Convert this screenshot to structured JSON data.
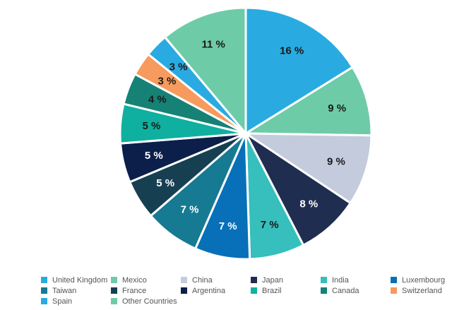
{
  "chart_data": {
    "type": "pie",
    "title": "",
    "slices": [
      {
        "name": "United Kingdom",
        "value": 16,
        "label": "16 %",
        "color": "#29abe2",
        "label_color": "#1a1a1a"
      },
      {
        "name": "Mexico",
        "value": 9,
        "label": "9 %",
        "color": "#6ecba8",
        "label_color": "#1a1a1a"
      },
      {
        "name": "China",
        "value": 9,
        "label": "9 %",
        "color": "#c3cbdd",
        "label_color": "#1a1a1a"
      },
      {
        "name": "Japan",
        "value": 8,
        "label": "8 %",
        "color": "#1f2d50",
        "label_color": "#ffffff"
      },
      {
        "name": "India",
        "value": 7,
        "label": "7 %",
        "color": "#36bfbc",
        "label_color": "#1a1a1a"
      },
      {
        "name": "Luxembourg",
        "value": 7,
        "label": "7 %",
        "color": "#0770b9",
        "label_color": "#ffffff"
      },
      {
        "name": "Taiwan",
        "value": 7,
        "label": "7 %",
        "color": "#167a92",
        "label_color": "#ffffff"
      },
      {
        "name": "France",
        "value": 5,
        "label": "5 %",
        "color": "#173f52",
        "label_color": "#ffffff"
      },
      {
        "name": "Argentina",
        "value": 5,
        "label": "5 %",
        "color": "#0b1f4a",
        "label_color": "#ffffff"
      },
      {
        "name": "Brazil",
        "value": 5,
        "label": "5 %",
        "color": "#0fb09f",
        "label_color": "#1a1a1a"
      },
      {
        "name": "Canada",
        "value": 4,
        "label": "4 %",
        "color": "#168276",
        "label_color": "#1a1a1a"
      },
      {
        "name": "Switzerland",
        "value": 3,
        "label": "3 %",
        "color": "#f79a5d",
        "label_color": "#1a1a1a"
      },
      {
        "name": "Spain",
        "value": 3,
        "label": "3 %",
        "color": "#29abe2",
        "label_color": "#1a1a1a"
      },
      {
        "name": "Other Countries",
        "value": 11,
        "label": "11 %",
        "color": "#6ecba8",
        "label_color": "#1a1a1a"
      }
    ],
    "legend_position": "bottom"
  }
}
